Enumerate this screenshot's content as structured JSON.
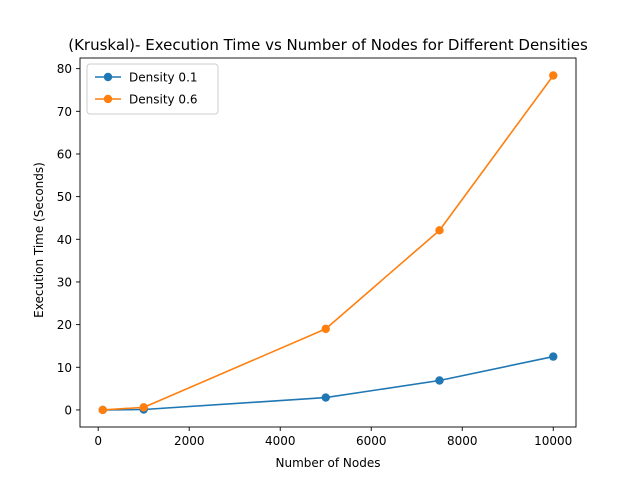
{
  "chart_data": {
    "type": "line",
    "title": "(Kruskal)- Execution Time vs Number of Nodes for Different Densities",
    "xlabel": "Number of Nodes",
    "ylabel": "Execution Time (Seconds)",
    "xlim": [
      -400,
      10500
    ],
    "ylim": [
      -4,
      82.5
    ],
    "xticks": [
      0,
      2000,
      4000,
      6000,
      8000,
      10000
    ],
    "yticks": [
      0,
      10,
      20,
      30,
      40,
      50,
      60,
      70,
      80
    ],
    "grid": false,
    "legend_position": "top-left",
    "series": [
      {
        "name": "Density 0.1",
        "color": "#1f77b4",
        "marker": "circle",
        "x": [
          100,
          1000,
          5000,
          7500,
          10000
        ],
        "y": [
          0.0,
          0.1,
          2.9,
          6.9,
          12.5
        ]
      },
      {
        "name": "Density 0.6",
        "color": "#ff7f0e",
        "marker": "circle",
        "x": [
          100,
          1000,
          5000,
          7500,
          10000
        ],
        "y": [
          0.0,
          0.6,
          19.0,
          42.1,
          78.4
        ]
      }
    ]
  }
}
